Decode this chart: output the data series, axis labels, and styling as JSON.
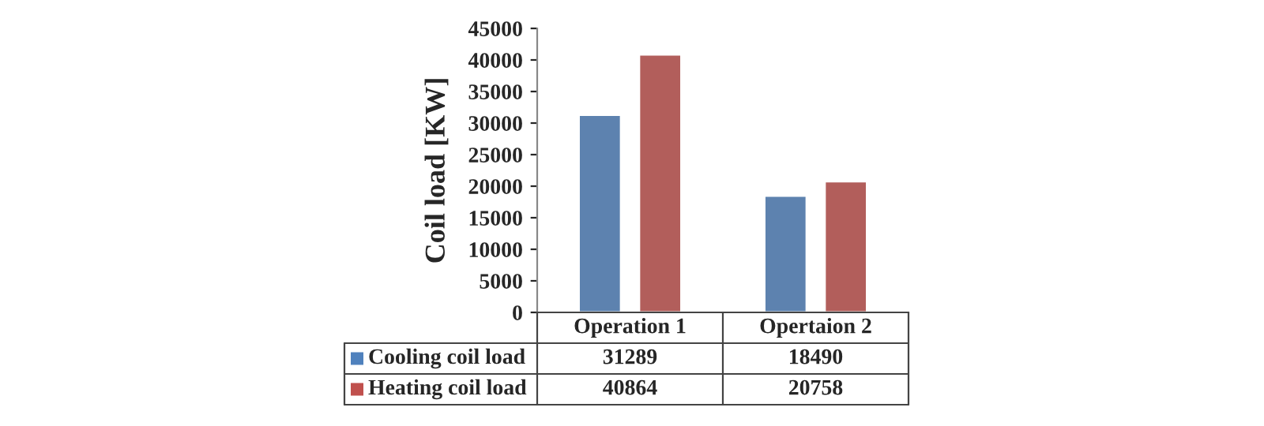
{
  "chart_data": {
    "type": "bar",
    "ylabel": "Coil load [KW]",
    "categories": [
      "Operation 1",
      "Opertaion 2"
    ],
    "series": [
      {
        "name": "Cooling coil load",
        "color": "#4f81bd",
        "values": [
          31289,
          18490
        ]
      },
      {
        "name": "Heating coil load",
        "color": "#c0504d",
        "values": [
          40864,
          20758
        ]
      }
    ],
    "ylim": [
      0,
      45000
    ],
    "yticks": [
      0,
      5000,
      10000,
      15000,
      20000,
      25000,
      30000,
      35000,
      40000,
      45000
    ],
    "grid": false,
    "data_labels": true,
    "legend": "bottom",
    "tick_labels": "y"
  }
}
